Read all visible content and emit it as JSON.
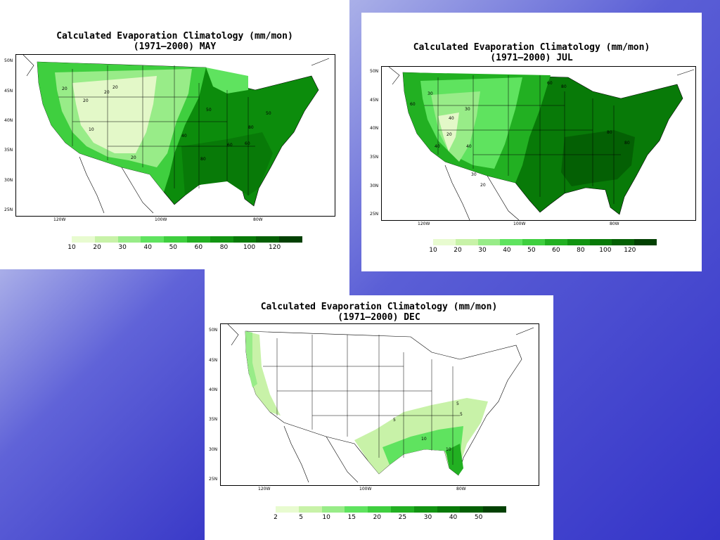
{
  "panels": {
    "may": {
      "title_line1": "Calculated Evaporation Climatology (mm/mon)",
      "title_line2": "(1971–2000) MAY",
      "lat_labels": [
        "50N",
        "45N",
        "40N",
        "35N",
        "30N",
        "25N"
      ],
      "lon_labels": [
        "120W",
        "100W",
        "80W"
      ],
      "contour_labels": [
        "20",
        "20",
        "20",
        "20",
        "10",
        "20",
        "40",
        "50",
        "50",
        "60",
        "60",
        "80",
        "80"
      ],
      "legend_ticks": [
        "10",
        "20",
        "30",
        "40",
        "50",
        "60",
        "80",
        "100",
        "120"
      ]
    },
    "jul": {
      "title_line1": "Calculated Evaporation Climatology (mm/mon)",
      "title_line2": "(1971–2000) JUL",
      "lat_labels": [
        "50N",
        "45N",
        "40N",
        "35N",
        "30N",
        "25N"
      ],
      "lon_labels": [
        "120W",
        "100W",
        "80W"
      ],
      "contour_labels": [
        "30",
        "60",
        "30",
        "40",
        "20",
        "40",
        "30",
        "20",
        "40",
        "60",
        "80",
        "80",
        "80"
      ],
      "legend_ticks": [
        "10",
        "20",
        "30",
        "40",
        "50",
        "60",
        "80",
        "100",
        "120"
      ]
    },
    "dec": {
      "title_line1": "Calculated Evaporation Climatology (mm/mon)",
      "title_line2": "(1971–2000) DEC",
      "lat_labels": [
        "50N",
        "45N",
        "40N",
        "35N",
        "30N",
        "25N"
      ],
      "lon_labels": [
        "120W",
        "100W",
        "80W"
      ],
      "contour_labels": [
        "5",
        "5",
        "10",
        "5",
        "10"
      ],
      "legend_ticks": [
        "2",
        "5",
        "10",
        "15",
        "20",
        "25",
        "30",
        "40",
        "50"
      ]
    }
  },
  "legend_colors_10": [
    "#e8fbd0",
    "#c8f2a8",
    "#98ec88",
    "#5fe35f",
    "#3fcf3f",
    "#22b022",
    "#129412",
    "#087a08",
    "#046004",
    "#024002"
  ],
  "colors": {
    "background_gradient_start": "#aab0e8",
    "background_gradient_end": "#3434c8",
    "border": "#000000"
  }
}
